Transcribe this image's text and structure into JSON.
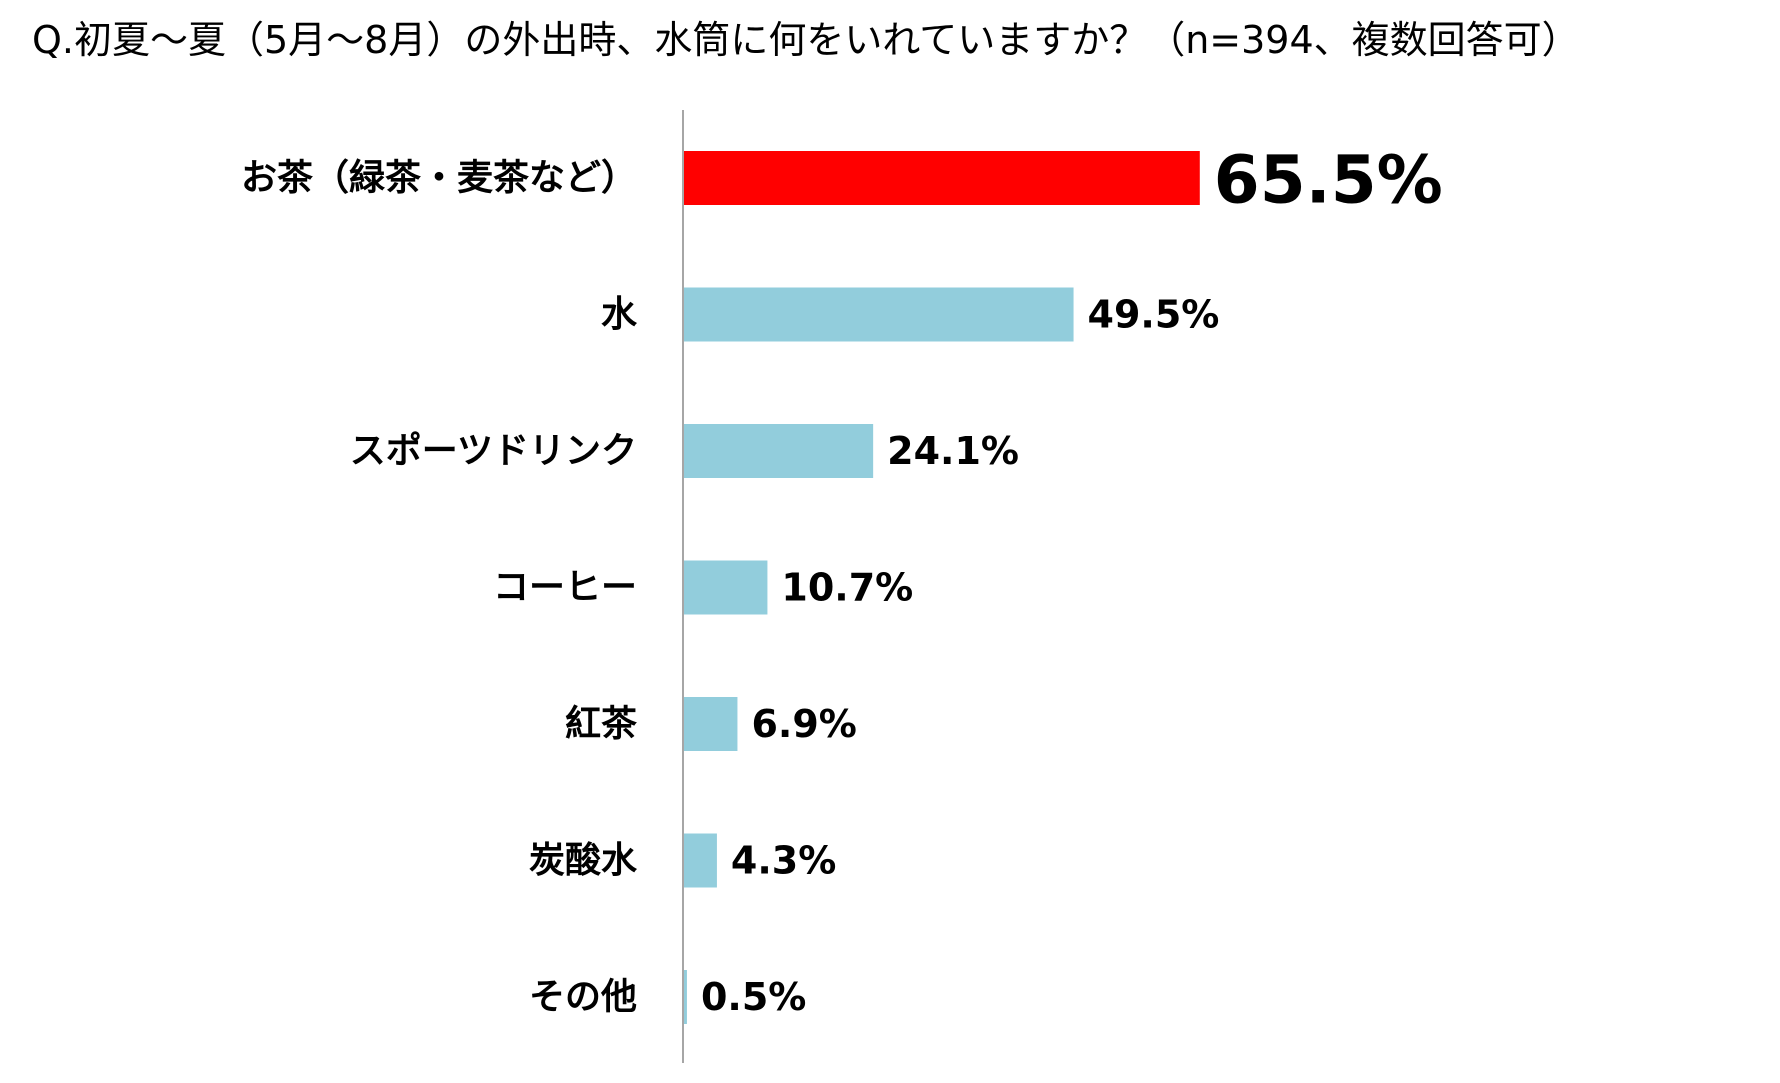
{
  "chart_data": {
    "type": "bar",
    "orientation": "horizontal",
    "title": "Q.初夏～夏（5月～8月）の外出時、水筒に何をいれていますか？（n=394、複数回答可）",
    "categories": [
      "お茶（緑茶・麦茶など）",
      "水",
      "スポーツドリンク",
      "コーヒー",
      "紅茶",
      "炭酸水",
      "その他"
    ],
    "values": [
      65.5,
      49.5,
      24.1,
      10.7,
      6.9,
      4.3,
      0.5
    ],
    "value_labels": [
      "65.5%",
      "49.5%",
      "24.1%",
      "10.7%",
      "6.9%",
      "4.3%",
      "0.5%"
    ],
    "highlight_index": 0,
    "colors": {
      "highlight": "#ff0000",
      "default": "#92cddc",
      "axis": "#a6a6a6"
    },
    "xlim": [
      0,
      100
    ],
    "grid": false,
    "legend": "none"
  }
}
